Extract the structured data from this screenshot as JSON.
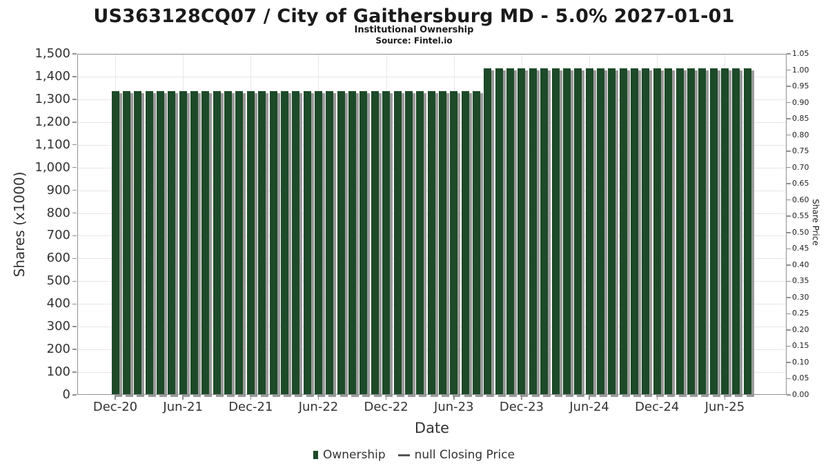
{
  "header": {
    "title": "US363128CQ07 / City of Gaithersburg MD - 5.0% 2027-01-01",
    "subtitle": "Institutional Ownership",
    "source": "Source: Fintel.io"
  },
  "chart_data": {
    "type": "bar",
    "title": "US363128CQ07 / City of Gaithersburg MD - 5.0% 2027-01-01",
    "subtitle": "Institutional Ownership",
    "source": "Source: Fintel.io",
    "xlabel": "Date",
    "ylabel_left": "Shares (x1000)",
    "ylabel_right": "Share Price",
    "ylim_left": [
      0,
      1500
    ],
    "ytick_step_left": 100,
    "ytick_labels_left": [
      "0",
      "100",
      "200",
      "300",
      "400",
      "500",
      "600",
      "700",
      "800",
      "900",
      "1,000",
      "1,100",
      "1,200",
      "1,300",
      "1,400",
      "1,500"
    ],
    "ylim_right": [
      0,
      1.05
    ],
    "ytick_step_right": 0.05,
    "ytick_labels_right": [
      "0.00",
      "0.05",
      "0.10",
      "0.15",
      "0.20",
      "0.25",
      "0.30",
      "0.35",
      "0.40",
      "0.45",
      "0.50",
      "0.55",
      "0.60",
      "0.65",
      "0.70",
      "0.75",
      "0.80",
      "0.85",
      "0.90",
      "0.95",
      "1.00",
      "1.05"
    ],
    "grid": true,
    "legend_position": "bottom",
    "categories": [
      "Dec-20",
      "Jan-21",
      "Feb-21",
      "Mar-21",
      "Apr-21",
      "May-21",
      "Jun-21",
      "Jul-21",
      "Aug-21",
      "Sep-21",
      "Oct-21",
      "Nov-21",
      "Dec-21",
      "Jan-22",
      "Feb-22",
      "Mar-22",
      "Apr-22",
      "May-22",
      "Jun-22",
      "Jul-22",
      "Aug-22",
      "Sep-22",
      "Oct-22",
      "Nov-22",
      "Dec-22",
      "Jan-23",
      "Feb-23",
      "Mar-23",
      "Apr-23",
      "May-23",
      "Jun-23",
      "Jul-23",
      "Aug-23",
      "Sep-23",
      "Oct-23",
      "Nov-23",
      "Dec-23",
      "Jan-24",
      "Feb-24",
      "Mar-24",
      "Apr-24",
      "May-24",
      "Jun-24",
      "Jul-24",
      "Aug-24",
      "Sep-24",
      "Oct-24",
      "Nov-24",
      "Dec-24",
      "Jan-25",
      "Feb-25",
      "Mar-25",
      "Apr-25",
      "May-25",
      "Jun-25",
      "Jul-25",
      "Aug-25"
    ],
    "xtick_indices": [
      0,
      6,
      12,
      18,
      24,
      30,
      36,
      42,
      48,
      54
    ],
    "xtick_labels": [
      "Dec-20",
      "Jun-21",
      "Dec-21",
      "Jun-22",
      "Dec-22",
      "Jun-23",
      "Dec-23",
      "Jun-24",
      "Dec-24",
      "Jun-25"
    ],
    "series": [
      {
        "name": "Ownership",
        "type": "bar",
        "color": "#1d4a28",
        "values": [
          1335,
          1335,
          1335,
          1335,
          1335,
          1335,
          1335,
          1335,
          1335,
          1335,
          1335,
          1335,
          1335,
          1335,
          1335,
          1335,
          1335,
          1335,
          1335,
          1335,
          1335,
          1335,
          1335,
          1335,
          1335,
          1335,
          1335,
          1335,
          1335,
          1335,
          1335,
          1335,
          1335,
          1435,
          1435,
          1435,
          1435,
          1435,
          1435,
          1435,
          1435,
          1435,
          1435,
          1435,
          1435,
          1435,
          1435,
          1435,
          1435,
          1435,
          1435,
          1435,
          1435,
          1435,
          1435,
          1435,
          1435
        ]
      },
      {
        "name": "null Closing Price",
        "type": "line",
        "color": "#555555",
        "values": []
      }
    ]
  },
  "legend": {
    "items": [
      {
        "label": "Ownership",
        "marker": "square",
        "color": "#1d4a28"
      },
      {
        "label": "null Closing Price",
        "marker": "dash",
        "color": "#555555"
      }
    ]
  },
  "colors": {
    "bar": "#1d4a28",
    "bar_shadow": "#9a9a9a",
    "grid": "#e7e7e7",
    "plot_border": "#8f8f8f",
    "text": "#333333",
    "background": "#ffffff"
  }
}
